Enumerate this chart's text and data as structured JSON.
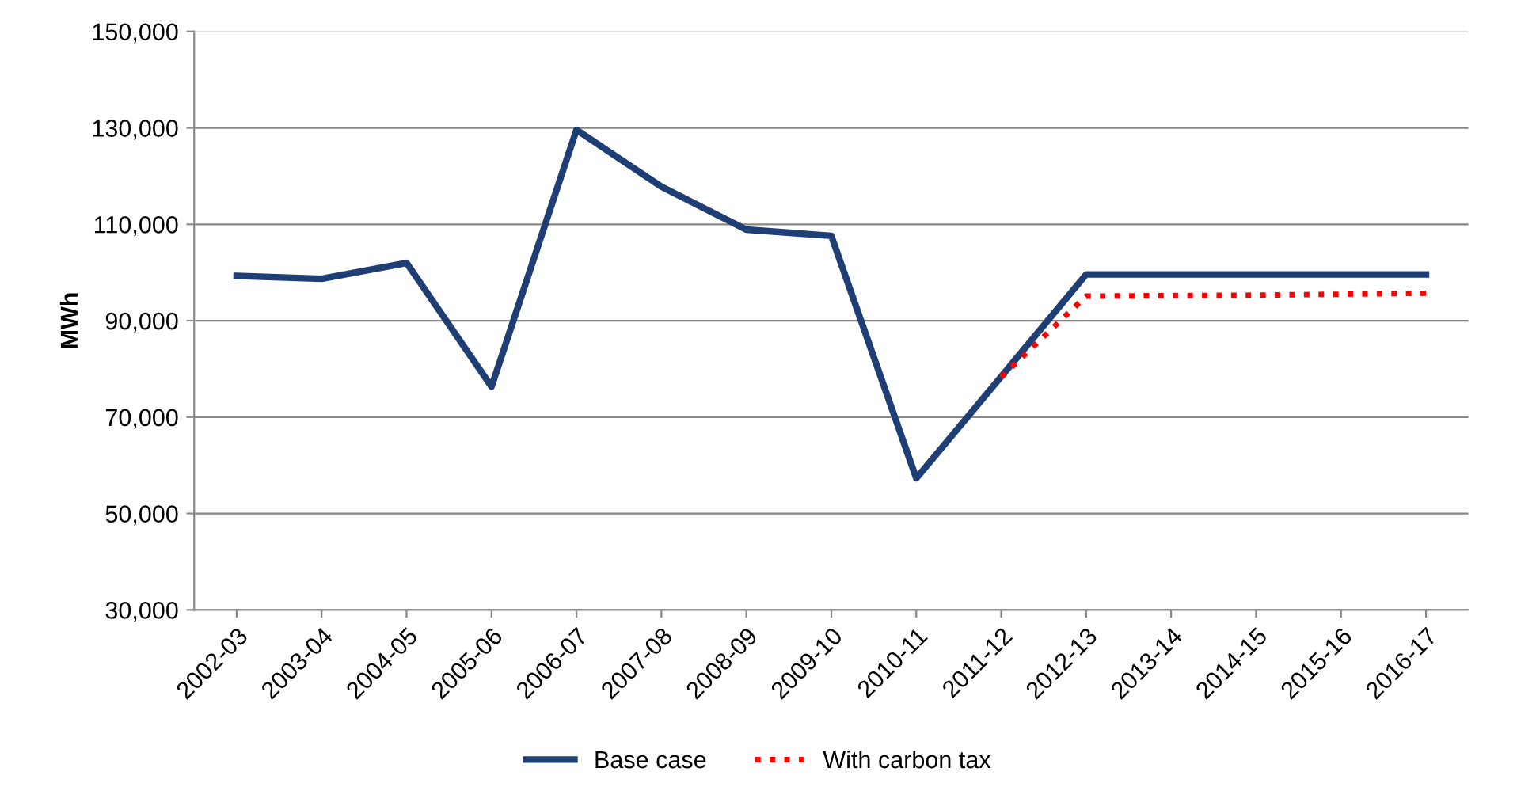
{
  "chart_data": {
    "type": "line",
    "ylabel": "MWh",
    "categories": [
      "2002-03",
      "2003-04",
      "2004-05",
      "2005-06",
      "2006-07",
      "2007-08",
      "2008-09",
      "2009-10",
      "2010-11",
      "2011-12",
      "2012-13",
      "2013-14",
      "2014-15",
      "2015-16",
      "2016-17"
    ],
    "series": [
      {
        "name": "Base case",
        "color": "#1f3f74",
        "line_style": "solid",
        "values": [
          99300,
          98700,
          102000,
          76300,
          129600,
          117800,
          108900,
          107600,
          57300,
          78400,
          99600,
          99600,
          99600,
          99600,
          99600
        ]
      },
      {
        "name": "With carbon tax",
        "color": "#ff0000",
        "line_style": "dotted",
        "values": [
          null,
          null,
          null,
          null,
          null,
          null,
          null,
          null,
          null,
          78300,
          95100,
          95200,
          95300,
          95500,
          95700
        ]
      }
    ],
    "ylim": [
      30000,
      150000
    ],
    "yticks": [
      {
        "value": 30000,
        "label": "30,000"
      },
      {
        "value": 50000,
        "label": "50,000"
      },
      {
        "value": 70000,
        "label": "70,000"
      },
      {
        "value": 90000,
        "label": "90,000"
      },
      {
        "value": 110000,
        "label": "110,000"
      },
      {
        "value": 130000,
        "label": "130,000"
      },
      {
        "value": 150000,
        "label": "150,000"
      }
    ],
    "grid": "y",
    "legend": "bottom",
    "marker": "none"
  }
}
